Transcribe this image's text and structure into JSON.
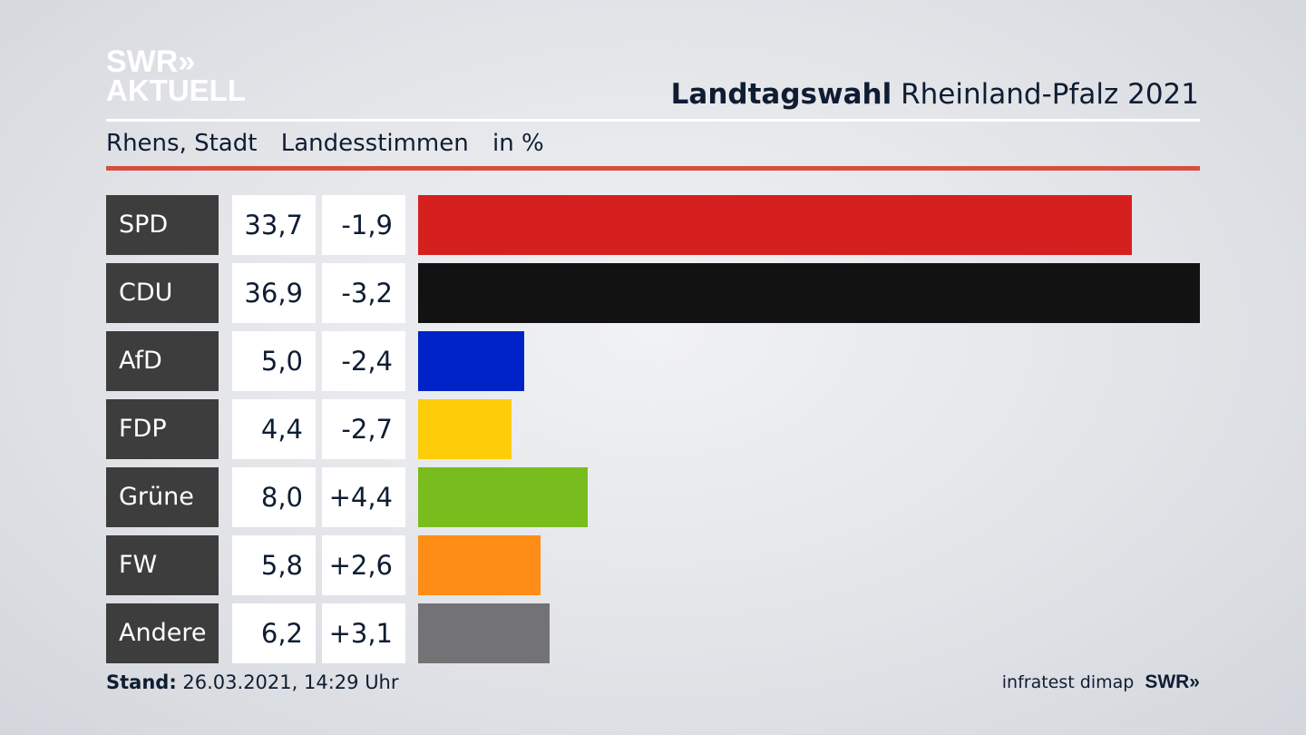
{
  "logo": {
    "line1": "SWR»",
    "line2": "AKTUELL"
  },
  "title": {
    "bold": "Landtagswahl",
    "regular": "Rheinland-Pfalz 2021"
  },
  "subtitle": {
    "place": "Rhens, Stadt",
    "vote_type": "Landesstimmen",
    "unit": "in %"
  },
  "footer": {
    "stand_label": "Stand:",
    "stand_value": "26.03.2021, 14:29 Uhr",
    "source": "infratest dimap",
    "swr": "SWR»"
  },
  "chart_data": {
    "type": "bar",
    "orientation": "horizontal",
    "categories": [
      "SPD",
      "CDU",
      "AfD",
      "FDP",
      "Grüne",
      "FW",
      "Andere"
    ],
    "series": [
      {
        "values": [
          33.7,
          36.9,
          5.0,
          4.4,
          8.0,
          5.8,
          6.2
        ]
      }
    ],
    "value_labels": [
      "33,7",
      "36,9",
      "5,0",
      "4,4",
      "8,0",
      "5,8",
      "6,2"
    ],
    "difference_labels": [
      "-1,9",
      "-3,2",
      "-2,4",
      "-2,7",
      "+4,4",
      "+2,6",
      "+3,1"
    ],
    "differences": [
      -1.9,
      -3.2,
      -2.4,
      -2.7,
      4.4,
      2.6,
      3.1
    ],
    "colors": [
      "#d62020",
      "#121212",
      "#0023c8",
      "#fecd0a",
      "#79bc1e",
      "#fd8d17",
      "#737375"
    ],
    "xlim": [
      0,
      36.9
    ],
    "grid": false
  }
}
